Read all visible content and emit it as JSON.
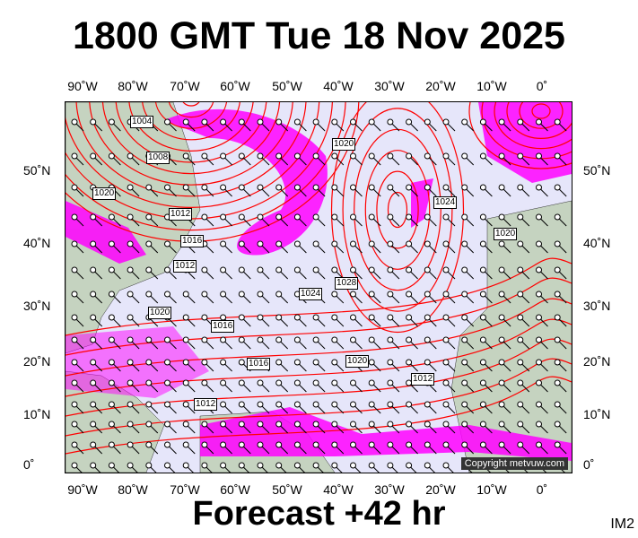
{
  "header": {
    "title": "1800 GMT Tue 18 Nov 2025"
  },
  "footer": {
    "forecast": "Forecast +42 hr",
    "image_id": "IM2"
  },
  "axes": {
    "longitudes": [
      "90˚W",
      "80˚W",
      "70˚W",
      "60˚W",
      "50˚W",
      "40˚W",
      "30˚W",
      "20˚W",
      "10˚W",
      "0˚"
    ],
    "latitudes": [
      "50˚N",
      "40˚N",
      "30˚N",
      "20˚N",
      "10˚N",
      "0˚"
    ]
  },
  "isobar_labels": [
    "1004",
    "1008",
    "1020",
    "1012",
    "1016",
    "1012",
    "1020",
    "1020",
    "1028",
    "1024",
    "1020",
    "1024",
    "1020",
    "1016",
    "1016",
    "1012",
    "1012"
  ],
  "copyright": "Copyright metvuw.com",
  "colors": {
    "background": "#e6e6fa",
    "land": "#c5d3c0",
    "isobar": "#ff0000",
    "precip": "#ff00ff"
  }
}
